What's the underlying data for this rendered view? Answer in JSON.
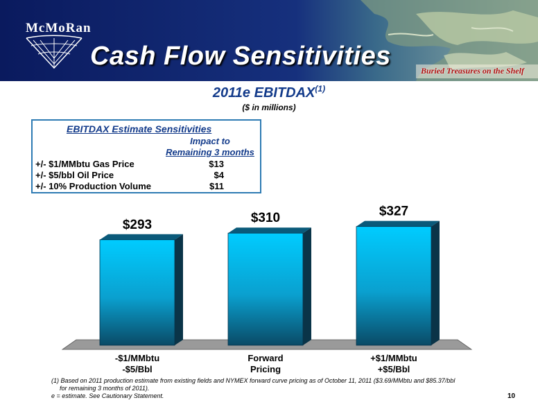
{
  "header": {
    "logo_text": "McMoRan",
    "title": "Cash Flow Sensitivities",
    "tagline": "Buried Treasures on the Shelf"
  },
  "chart_heading": {
    "title": "2011e EBITDAX",
    "title_note": "(1)",
    "units": "($ in millions)"
  },
  "sensitivity_table": {
    "title": "EBITDAX Estimate Sensitivities",
    "column_header_line1": "Impact to",
    "column_header_line2": "Remaining 3 months",
    "rows": [
      {
        "label": "+/-  $1/MMbtu Gas Price",
        "value": "$13"
      },
      {
        "label": "+/-  $5/bbl Oil Price",
        "value": "$4"
      },
      {
        "label": "+/-  10% Production Volume",
        "value": "$11"
      }
    ]
  },
  "chart_data": {
    "type": "bar",
    "categories": [
      {
        "line1": "-$1/MMbtu",
        "line2": "-$5/Bbl"
      },
      {
        "line1": "Forward",
        "line2": "Pricing"
      },
      {
        "line1": "+$1/MMbtu",
        "line2": "+$5/Bbl"
      }
    ],
    "values": [
      293,
      310,
      327
    ],
    "data_labels": [
      "$293",
      "$310",
      "$327"
    ],
    "title": "2011e EBITDAX",
    "ylabel": "",
    "xlabel": "",
    "grid": false,
    "bar_color": "#00b8ee"
  },
  "footnotes": {
    "note1_line1": "(1) Based on 2011 production estimate from existing fields and NYMEX forward curve pricing as of October 11, 2011 ($3.69/MMbtu and $85.37/bbl",
    "note1_line2": "for remaining 3 months of 2011).",
    "note2": "e = estimate.  See Cautionary Statement."
  },
  "page_number": "10"
}
